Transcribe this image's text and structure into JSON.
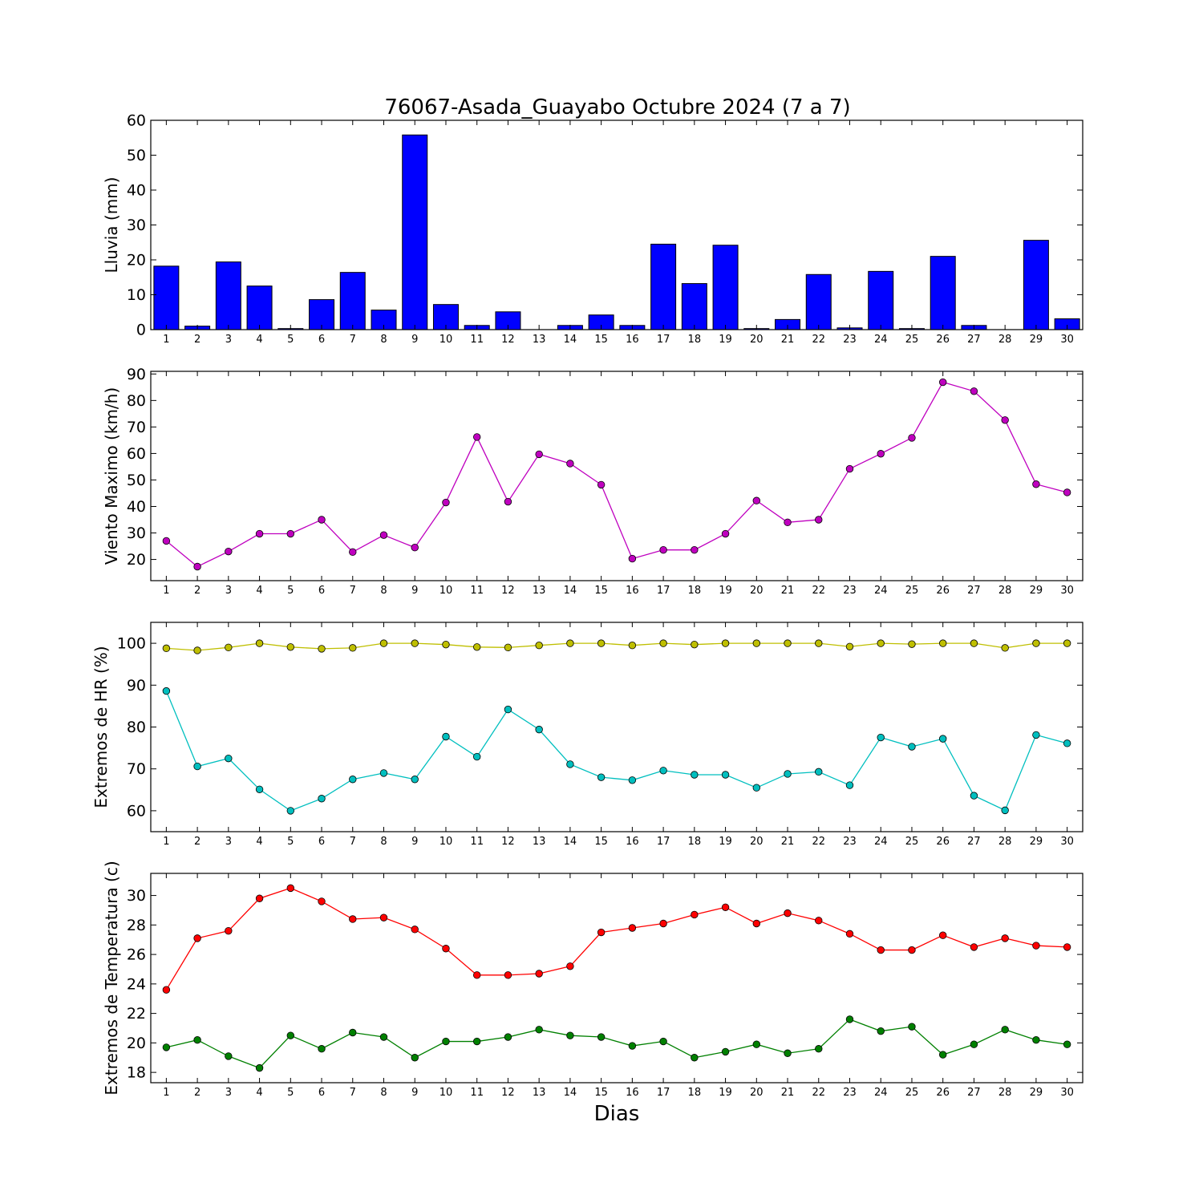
{
  "title": "76067-Asada_Guayabo Octubre 2024  (7 a 7)",
  "xlabel": "Dias",
  "chart_data": [
    {
      "type": "bar",
      "ylabel": "Lluvia (mm)",
      "x": [
        1,
        2,
        3,
        4,
        5,
        6,
        7,
        8,
        9,
        10,
        11,
        12,
        13,
        14,
        15,
        16,
        17,
        18,
        19,
        20,
        21,
        22,
        23,
        24,
        25,
        26,
        27,
        28,
        29,
        30
      ],
      "xlim": [
        0.5,
        30.5
      ],
      "ylim": [
        0,
        60
      ],
      "yticks": [
        0,
        10,
        20,
        30,
        40,
        50,
        60
      ],
      "series": [
        {
          "color": "#0000ff",
          "values": [
            18.2,
            1.0,
            19.4,
            12.5,
            0.3,
            8.6,
            16.4,
            5.6,
            55.8,
            7.2,
            1.2,
            5.1,
            0,
            1.2,
            4.2,
            1.2,
            24.5,
            13.2,
            24.2,
            0.3,
            2.9,
            15.8,
            0.5,
            16.7,
            0.3,
            21.0,
            1.2,
            0,
            25.6,
            3.1
          ]
        }
      ]
    },
    {
      "type": "line",
      "ylabel": "Viento Maximo (km/h)",
      "x": [
        1,
        2,
        3,
        4,
        5,
        6,
        7,
        8,
        9,
        10,
        11,
        12,
        13,
        14,
        15,
        16,
        17,
        18,
        19,
        20,
        21,
        22,
        23,
        24,
        25,
        26,
        27,
        28,
        29,
        30
      ],
      "xlim": [
        0.5,
        30.5
      ],
      "ylim": [
        12,
        91
      ],
      "yticks": [
        20,
        30,
        40,
        50,
        60,
        70,
        80,
        90
      ],
      "series": [
        {
          "color": "#bf00bf",
          "values": [
            27.0,
            17.3,
            23.0,
            29.7,
            29.7,
            35.0,
            22.8,
            29.2,
            24.5,
            41.5,
            66.2,
            41.8,
            59.7,
            56.2,
            48.2,
            20.3,
            23.6,
            23.6,
            29.7,
            42.2,
            34.0,
            35.0,
            54.2,
            59.9,
            65.9,
            86.9,
            83.5,
            72.6,
            48.4,
            45.3
          ]
        }
      ]
    },
    {
      "type": "line",
      "ylabel": "Extremos de HR (%)",
      "x": [
        1,
        2,
        3,
        4,
        5,
        6,
        7,
        8,
        9,
        10,
        11,
        12,
        13,
        14,
        15,
        16,
        17,
        18,
        19,
        20,
        21,
        22,
        23,
        24,
        25,
        26,
        27,
        28,
        29,
        30
      ],
      "xlim": [
        0.5,
        30.5
      ],
      "ylim": [
        55,
        105
      ],
      "yticks": [
        60,
        70,
        80,
        90,
        100
      ],
      "series": [
        {
          "color": "#bfbf00",
          "values": [
            98.8,
            98.3,
            99.0,
            100,
            99.1,
            98.7,
            98.9,
            100,
            100,
            99.7,
            99.1,
            99.0,
            99.5,
            100,
            100,
            99.5,
            100,
            99.7,
            100,
            100,
            100,
            100,
            99.2,
            100,
            99.8,
            100,
            100,
            98.9,
            100,
            100
          ]
        },
        {
          "color": "#00bfbf",
          "values": [
            88.6,
            70.6,
            72.5,
            65.1,
            60.0,
            62.9,
            67.5,
            69.0,
            67.5,
            77.7,
            72.9,
            84.2,
            79.4,
            71.1,
            68.0,
            67.3,
            69.6,
            68.6,
            68.6,
            65.5,
            68.8,
            69.3,
            66.1,
            77.5,
            75.3,
            77.2,
            63.6,
            60.1,
            78.1,
            76.1
          ]
        }
      ]
    },
    {
      "type": "line",
      "ylabel": "Extremos de Temperatura (c)",
      "x": [
        1,
        2,
        3,
        4,
        5,
        6,
        7,
        8,
        9,
        10,
        11,
        12,
        13,
        14,
        15,
        16,
        17,
        18,
        19,
        20,
        21,
        22,
        23,
        24,
        25,
        26,
        27,
        28,
        29,
        30
      ],
      "xlim": [
        0.5,
        30.5
      ],
      "ylim": [
        17.3,
        31.5
      ],
      "yticks": [
        18,
        20,
        22,
        24,
        26,
        28,
        30
      ],
      "series": [
        {
          "color": "#ff0000",
          "values": [
            23.6,
            27.1,
            27.6,
            29.8,
            30.5,
            29.6,
            28.4,
            28.5,
            27.7,
            26.4,
            24.6,
            24.6,
            24.7,
            25.2,
            27.5,
            27.8,
            28.1,
            28.7,
            29.2,
            28.1,
            28.8,
            28.3,
            27.4,
            26.3,
            26.3,
            27.3,
            26.5,
            27.1,
            26.6,
            26.5
          ]
        },
        {
          "color": "#008000",
          "values": [
            19.7,
            20.2,
            19.1,
            18.3,
            20.5,
            19.6,
            20.7,
            20.4,
            19.0,
            20.1,
            20.1,
            20.4,
            20.9,
            20.5,
            20.4,
            19.8,
            20.1,
            19.0,
            19.4,
            19.9,
            19.3,
            19.6,
            21.6,
            20.8,
            21.1,
            19.2,
            19.9,
            20.9,
            20.2,
            19.9
          ]
        }
      ]
    }
  ]
}
